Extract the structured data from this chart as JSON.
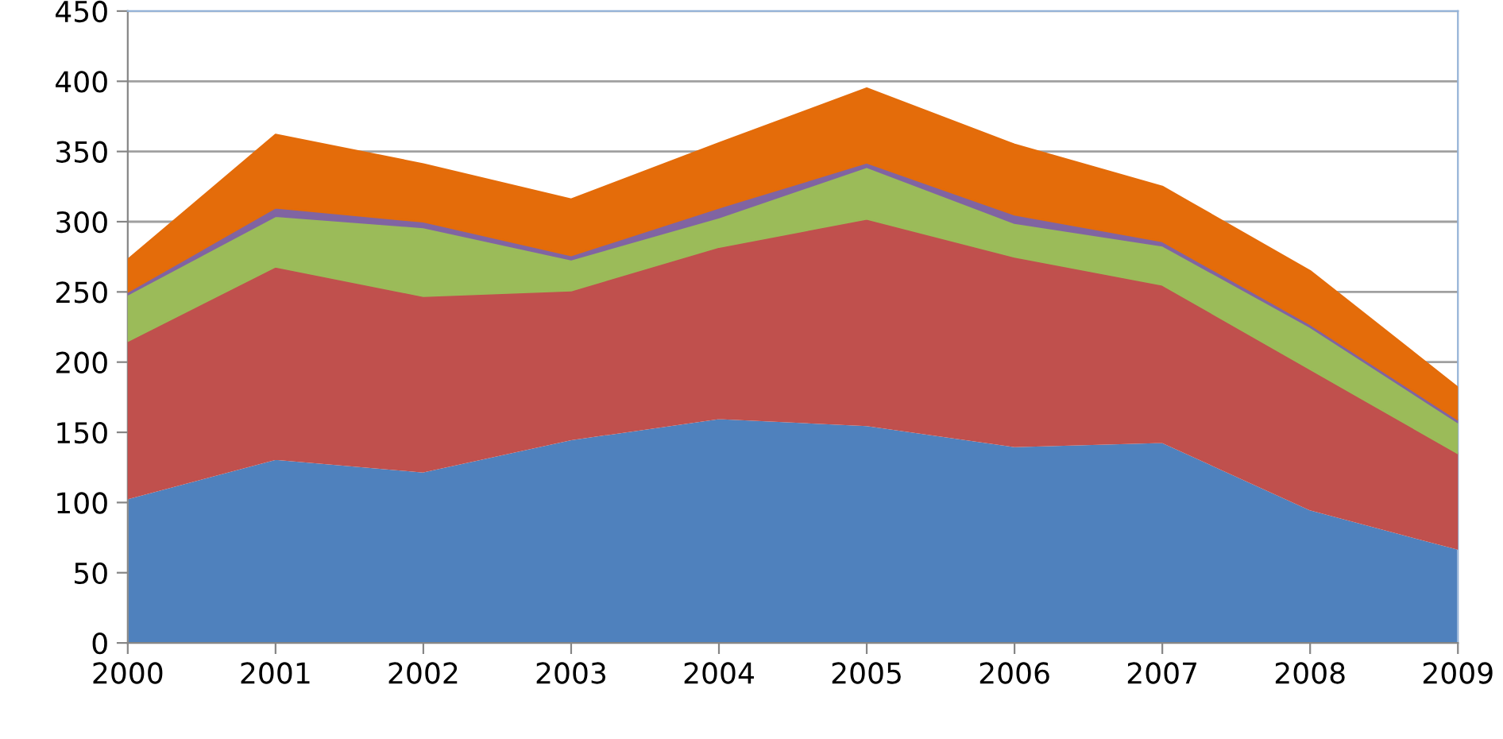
{
  "chart_data": {
    "type": "area",
    "stacked": true,
    "categories": [
      "2000",
      "2001",
      "2002",
      "2003",
      "2004",
      "2005",
      "2006",
      "2007",
      "2008",
      "2009"
    ],
    "series": [
      {
        "color": "#4f81bd",
        "values": [
          103,
          131,
          122,
          145,
          160,
          155,
          140,
          143,
          95,
          67
        ]
      },
      {
        "color": "#c0504d",
        "values": [
          112,
          137,
          125,
          106,
          122,
          147,
          135,
          112,
          100,
          68
        ]
      },
      {
        "color": "#9bbb59",
        "values": [
          33,
          36,
          49,
          22,
          21,
          37,
          24,
          28,
          30,
          22
        ]
      },
      {
        "color": "#8064a2",
        "values": [
          2,
          6,
          4,
          3,
          7,
          3,
          6,
          3,
          2,
          2
        ]
      },
      {
        "color": "#e46c0a",
        "values": [
          23,
          52,
          41,
          40,
          46,
          53,
          50,
          39,
          38,
          23
        ]
      }
    ],
    "ylim": [
      0,
      450
    ],
    "yticks": [
      0,
      50,
      100,
      150,
      200,
      250,
      300,
      350,
      400,
      450
    ],
    "grid": "y",
    "legend": false
  }
}
